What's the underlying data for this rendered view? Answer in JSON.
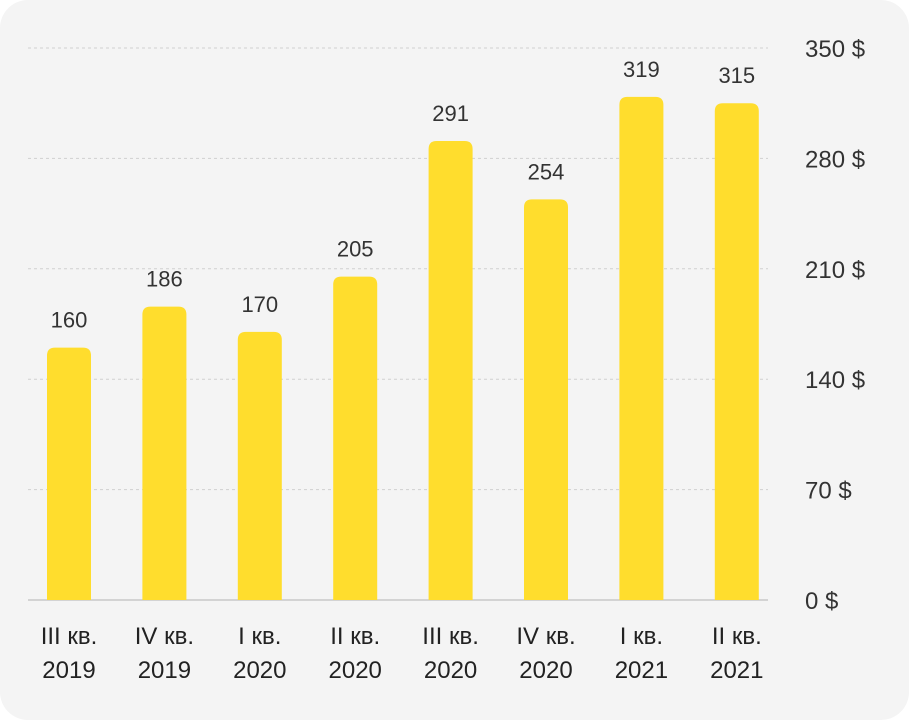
{
  "chart_data": {
    "type": "bar",
    "categories": [
      [
        "III кв.",
        "2019"
      ],
      [
        "IV кв.",
        "2019"
      ],
      [
        "I кв.",
        "2020"
      ],
      [
        "II кв.",
        "2020"
      ],
      [
        "III кв.",
        "2020"
      ],
      [
        "IV кв.",
        "2020"
      ],
      [
        "I кв.",
        "2021"
      ],
      [
        "II кв.",
        "2021"
      ]
    ],
    "values": [
      160,
      186,
      170,
      205,
      291,
      254,
      319,
      315
    ],
    "ylim": [
      0,
      350
    ],
    "yticks": [
      0,
      70,
      140,
      210,
      280,
      350
    ],
    "ytick_labels": [
      "0 $",
      "70 $",
      "140 $",
      "210 $",
      "280 $",
      "350 $"
    ],
    "y_axis_position": "right",
    "grid": true,
    "bar_color": "#ffdd2d",
    "background_color": "#f4f4f4"
  }
}
